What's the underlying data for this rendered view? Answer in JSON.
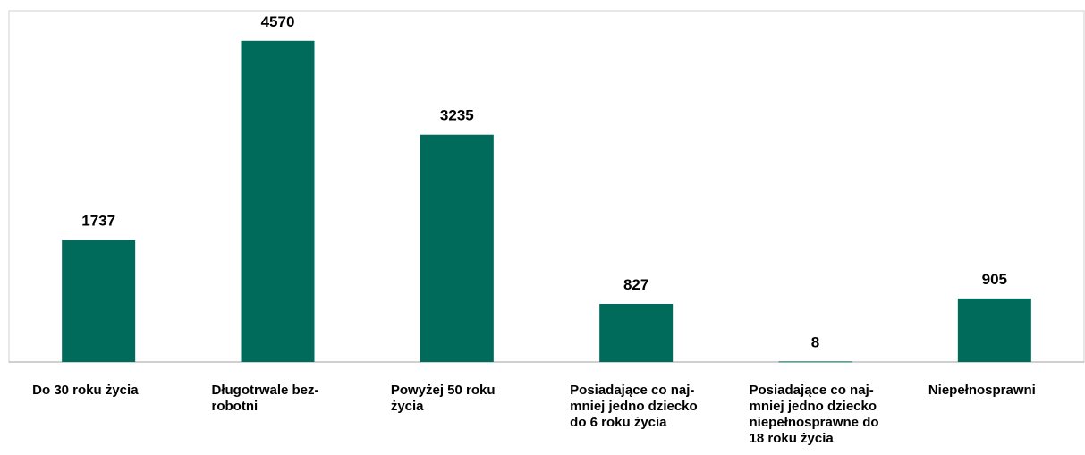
{
  "chart_data": {
    "type": "bar",
    "categories": [
      "Do 30 roku życia",
      "Długotrwale bez-\nrobotni",
      "Powyżej 50 roku\nżycia",
      "Posiadające co naj-\nmniej jedno dziecko\ndo 6 roku życia",
      "Posiadające co naj-\nmniej jedno dziecko\nniepełnosprawne do\n18 roku życia",
      "Niepełnosprawni"
    ],
    "values": [
      1737,
      4570,
      3235,
      827,
      8,
      905
    ],
    "color": "#006b5b",
    "ylim": [
      0,
      5000
    ]
  }
}
